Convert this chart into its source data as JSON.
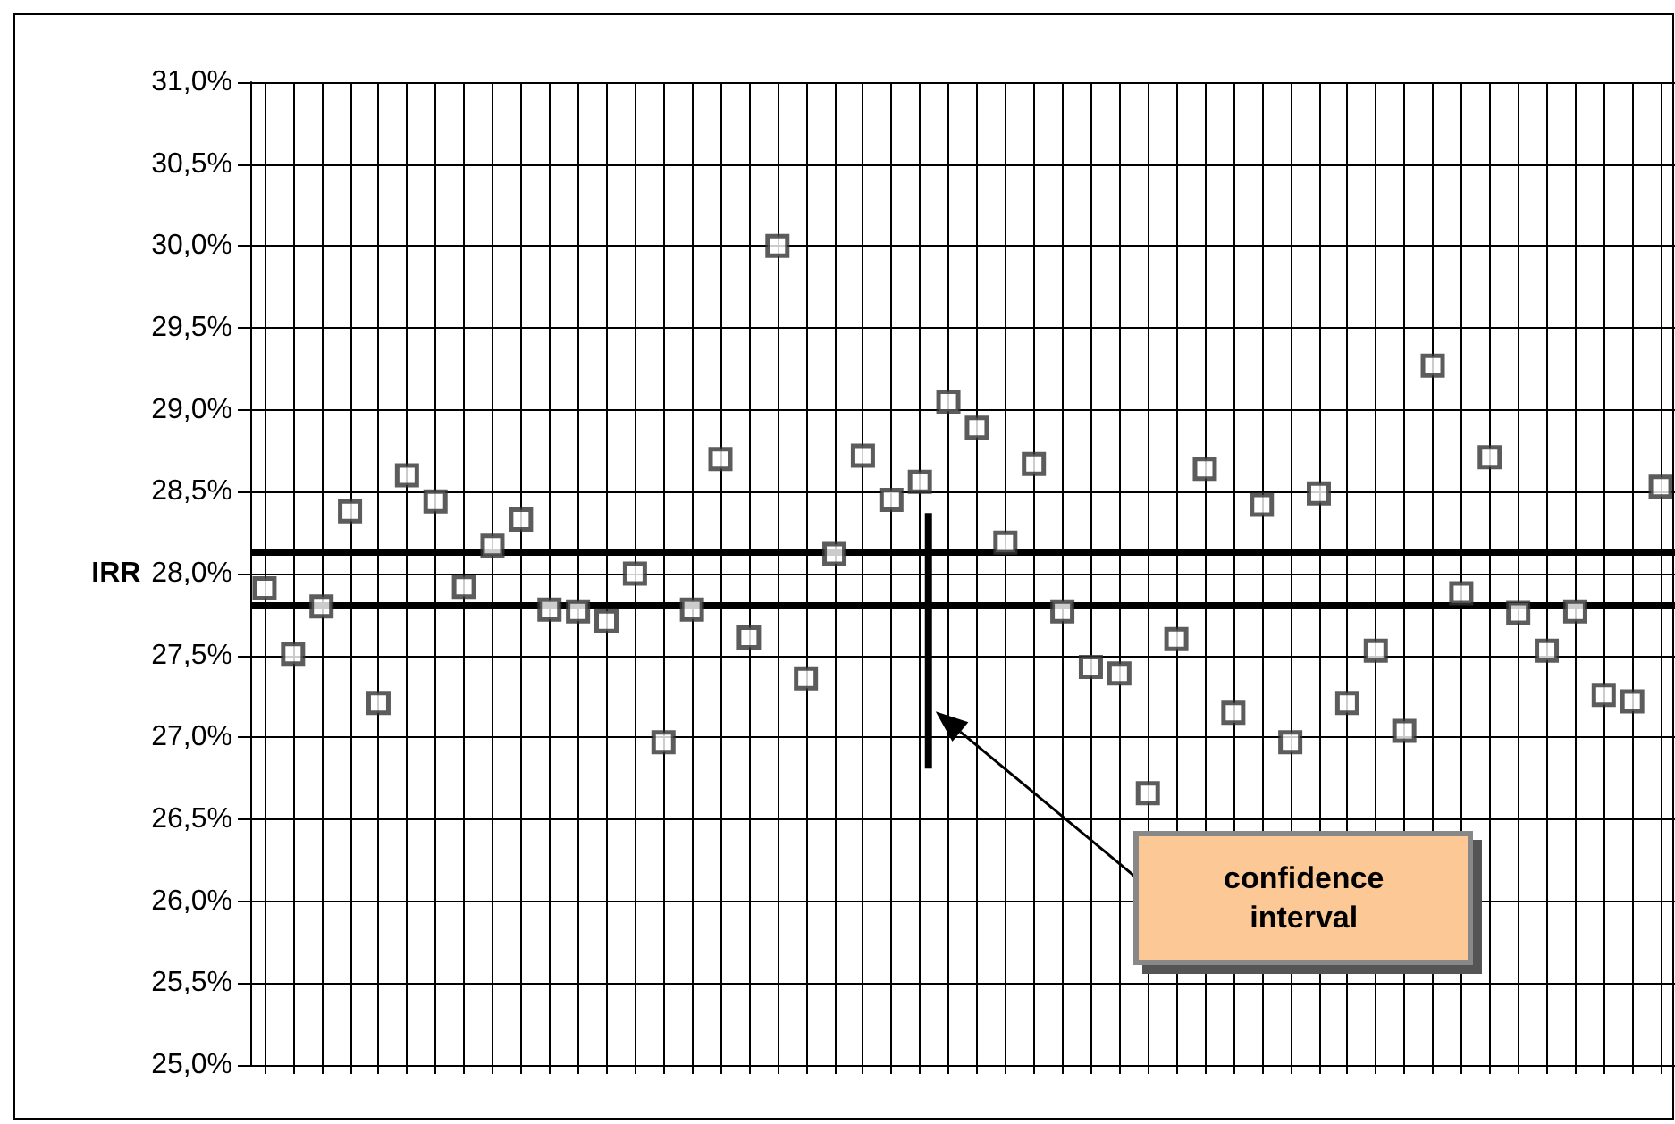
{
  "chart_data": {
    "type": "scatter",
    "ylabel": "IRR",
    "tick_labels": "y",
    "grid": true,
    "marker": "square",
    "categories": [
      null,
      null,
      null,
      null,
      null,
      null,
      null,
      null,
      null,
      null,
      null,
      null,
      null,
      null,
      null,
      null,
      null,
      null,
      null,
      null,
      null,
      null,
      null,
      null,
      null,
      null,
      null,
      null,
      null,
      null,
      null,
      null,
      null,
      null,
      null,
      null,
      null,
      null,
      null,
      null,
      null,
      null,
      null,
      null,
      null,
      null,
      null,
      null,
      null,
      null
    ],
    "ylim": [
      25,
      31
    ],
    "yticks": [
      {
        "value": 25,
        "label": "25,0%"
      },
      {
        "value": 25.5,
        "label": "25,5%"
      },
      {
        "value": 26,
        "label": "26,0%"
      },
      {
        "value": 26.5,
        "label": "26,5%"
      },
      {
        "value": 27,
        "label": "27,0%"
      },
      {
        "value": 27.5,
        "label": "27,5%"
      },
      {
        "value": 28,
        "label": "28,0%"
      },
      {
        "value": 28.5,
        "label": "28,5%"
      },
      {
        "value": 29,
        "label": "29,0%"
      },
      {
        "value": 29.5,
        "label": "29,5%"
      },
      {
        "value": 30,
        "label": "30,0%"
      },
      {
        "value": 30.5,
        "label": "30,5%"
      },
      {
        "value": 31,
        "label": "31,0%"
      }
    ],
    "series": [
      {
        "color": "#333333",
        "values": [
          27.91,
          27.51,
          27.8,
          28.38,
          27.21,
          28.6,
          28.44,
          27.92,
          28.17,
          28.33,
          27.78,
          27.77,
          27.71,
          28.0,
          26.97,
          27.78,
          28.7,
          27.61,
          30.0,
          27.36,
          28.12,
          28.72,
          28.45,
          28.56,
          29.05,
          28.89,
          28.19,
          28.67,
          27.77,
          27.43,
          27.39,
          26.66,
          27.6,
          28.64,
          27.15,
          28.42,
          26.97,
          28.49,
          27.21,
          27.53,
          27.04,
          29.27,
          27.88,
          28.71,
          27.76,
          27.53,
          27.77,
          27.26,
          27.22,
          28.53
        ]
      }
    ],
    "ref_lines": [
      {
        "axis": "y",
        "value": 28.13,
        "color": "#000000"
      },
      {
        "axis": "y",
        "value": 27.81,
        "color": "#000000"
      }
    ],
    "annotations": [
      "confidence interval"
    ]
  }
}
